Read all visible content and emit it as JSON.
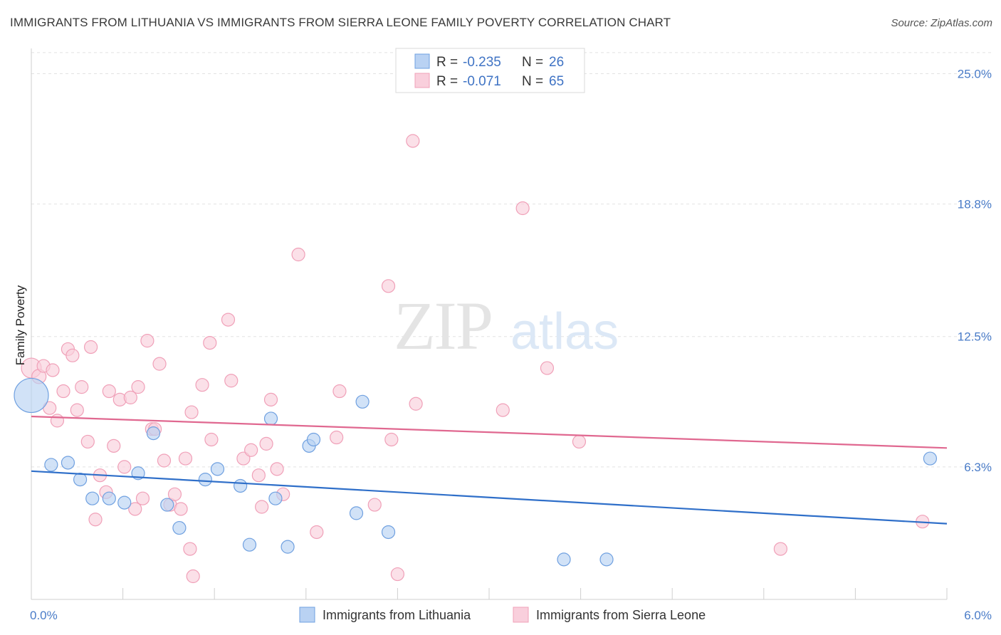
{
  "chart_data": {
    "type": "scatter",
    "title": "IMMIGRANTS FROM LITHUANIA VS IMMIGRANTS FROM SIERRA LEONE FAMILY POVERTY CORRELATION CHART",
    "source": "Source: ZipAtlas.com",
    "xlabel": "",
    "ylabel": "Family Poverty",
    "xlim": [
      0,
      6.0
    ],
    "ylim": [
      0,
      26.2
    ],
    "x_tick_labels": [
      "0.0%",
      "6.0%"
    ],
    "y_ticks": [
      6.3,
      12.5,
      18.8,
      25.0
    ],
    "y_tick_labels": [
      "6.3%",
      "12.5%",
      "18.8%",
      "25.0%"
    ],
    "watermark": {
      "part1": "ZIP",
      "part2": "atlas"
    },
    "legend": {
      "r_label": "R =",
      "n_label": "N =",
      "entries": [
        {
          "r": "-0.235",
          "n": "26"
        },
        {
          "r": "-0.071",
          "n": "65"
        }
      ]
    },
    "series": [
      {
        "name": "Immigrants from Lithuania",
        "color": "#6fa0e0",
        "fill": "#b9d2f3",
        "line_color": "#2f6fc9",
        "trend": [
          [
            0,
            6.1
          ],
          [
            6.0,
            3.6
          ]
        ],
        "points": [
          [
            0.0,
            9.7,
            24
          ],
          [
            0.13,
            6.4,
            9
          ],
          [
            0.24,
            6.5,
            9
          ],
          [
            0.32,
            5.7,
            9
          ],
          [
            0.4,
            4.8,
            9
          ],
          [
            0.51,
            4.8,
            9
          ],
          [
            0.61,
            4.6,
            9
          ],
          [
            0.7,
            6.0,
            9
          ],
          [
            0.8,
            7.9,
            9
          ],
          [
            0.89,
            4.5,
            9
          ],
          [
            0.97,
            3.4,
            9
          ],
          [
            1.14,
            5.7,
            9
          ],
          [
            1.22,
            6.2,
            9
          ],
          [
            1.37,
            5.4,
            9
          ],
          [
            1.43,
            2.6,
            9
          ],
          [
            1.57,
            8.6,
            9
          ],
          [
            1.6,
            4.8,
            9
          ],
          [
            1.68,
            2.5,
            9
          ],
          [
            1.82,
            7.3,
            9
          ],
          [
            1.85,
            7.6,
            9
          ],
          [
            2.13,
            4.1,
            9
          ],
          [
            2.17,
            9.4,
            9
          ],
          [
            2.34,
            3.2,
            9
          ],
          [
            3.49,
            1.9,
            9
          ],
          [
            3.77,
            1.9,
            9
          ],
          [
            5.89,
            6.7,
            9
          ]
        ]
      },
      {
        "name": "Immigrants from Sierra Leone",
        "color": "#f0a0b8",
        "fill": "#f9cfdc",
        "line_color": "#e06890",
        "trend": [
          [
            0,
            8.7
          ],
          [
            6.0,
            7.2
          ]
        ],
        "points": [
          [
            0.0,
            11.0,
            14
          ],
          [
            0.05,
            10.6,
            10
          ],
          [
            0.08,
            11.1,
            9
          ],
          [
            0.12,
            9.1,
            9
          ],
          [
            0.14,
            10.9,
            9
          ],
          [
            0.17,
            8.5,
            9
          ],
          [
            0.21,
            9.9,
            9
          ],
          [
            0.24,
            11.9,
            9
          ],
          [
            0.27,
            11.6,
            9
          ],
          [
            0.3,
            9.0,
            9
          ],
          [
            0.33,
            10.1,
            9
          ],
          [
            0.37,
            7.5,
            9
          ],
          [
            0.39,
            12.0,
            9
          ],
          [
            0.42,
            3.8,
            9
          ],
          [
            0.45,
            5.9,
            9
          ],
          [
            0.49,
            5.1,
            9
          ],
          [
            0.51,
            9.9,
            9
          ],
          [
            0.54,
            7.3,
            9
          ],
          [
            0.58,
            9.5,
            9
          ],
          [
            0.61,
            6.3,
            9
          ],
          [
            0.65,
            9.6,
            9
          ],
          [
            0.68,
            4.3,
            9
          ],
          [
            0.7,
            10.1,
            9
          ],
          [
            0.73,
            4.8,
            9
          ],
          [
            0.76,
            12.3,
            9
          ],
          [
            0.79,
            8.1,
            9
          ],
          [
            0.81,
            8.1,
            9
          ],
          [
            0.84,
            11.2,
            9
          ],
          [
            0.87,
            6.6,
            9
          ],
          [
            0.91,
            4.5,
            9
          ],
          [
            0.94,
            5.0,
            9
          ],
          [
            0.98,
            4.3,
            9
          ],
          [
            1.01,
            6.7,
            9
          ],
          [
            1.04,
            2.4,
            9
          ],
          [
            1.05,
            8.9,
            9
          ],
          [
            1.06,
            1.1,
            9
          ],
          [
            1.12,
            10.2,
            9
          ],
          [
            1.17,
            12.2,
            9
          ],
          [
            1.18,
            7.6,
            9
          ],
          [
            1.29,
            13.3,
            9
          ],
          [
            1.31,
            10.4,
            9
          ],
          [
            1.39,
            6.7,
            9
          ],
          [
            1.44,
            7.1,
            9
          ],
          [
            1.49,
            5.9,
            9
          ],
          [
            1.51,
            4.4,
            9
          ],
          [
            1.54,
            7.4,
            9
          ],
          [
            1.57,
            9.5,
            9
          ],
          [
            1.61,
            6.2,
            9
          ],
          [
            1.65,
            5.0,
            9
          ],
          [
            1.75,
            16.4,
            9
          ],
          [
            1.87,
            3.2,
            9
          ],
          [
            2.0,
            7.7,
            9
          ],
          [
            2.02,
            9.9,
            9
          ],
          [
            2.25,
            4.5,
            9
          ],
          [
            2.34,
            14.9,
            9
          ],
          [
            2.36,
            7.6,
            9
          ],
          [
            2.4,
            1.2,
            9
          ],
          [
            2.5,
            21.8,
            9
          ],
          [
            2.52,
            9.3,
            9
          ],
          [
            3.09,
            9.0,
            9
          ],
          [
            3.22,
            18.6,
            9
          ],
          [
            3.38,
            11.0,
            9
          ],
          [
            3.59,
            7.5,
            9
          ],
          [
            4.91,
            2.4,
            9
          ],
          [
            5.84,
            3.7,
            9
          ]
        ]
      }
    ]
  }
}
